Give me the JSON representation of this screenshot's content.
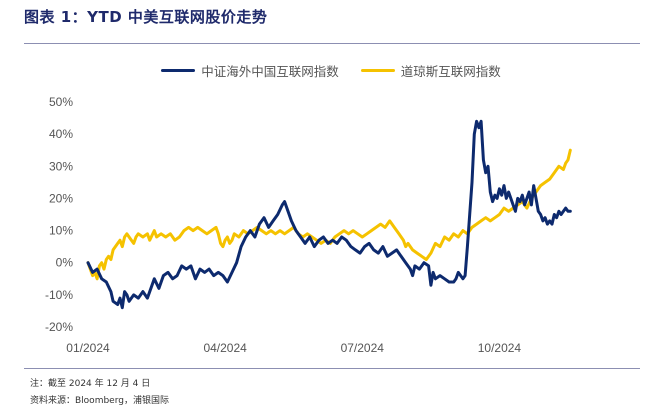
{
  "figure": {
    "title": "图表 1：YTD 中美互联网股价走势",
    "footnote": "注：截至 2024 年 12 月 4 日",
    "source": "资料来源：Bloomberg，浦银国际"
  },
  "chart_data": {
    "type": "line",
    "title": "",
    "xlabel": "",
    "ylabel": "",
    "ylim": [
      -20,
      50
    ],
    "xlim": [
      0,
      11.2
    ],
    "grid": false,
    "legend_position": "top-center",
    "yticks": [
      "50%",
      "40%",
      "30%",
      "20%",
      "10%",
      "0%",
      "-10%",
      "-20%"
    ],
    "ytick_values": [
      50,
      40,
      30,
      20,
      10,
      0,
      -10,
      -20
    ],
    "xticks": [
      "01/2024",
      "04/2024",
      "07/2024",
      "10/2024"
    ],
    "xtick_values": [
      0,
      3,
      6,
      9
    ],
    "series": [
      {
        "name": "中证海外中国互联网指数",
        "color": "#0d2a6e",
        "points": [
          [
            0.0,
            0
          ],
          [
            0.1,
            -3
          ],
          [
            0.2,
            -2
          ],
          [
            0.3,
            -5
          ],
          [
            0.4,
            -6
          ],
          [
            0.5,
            -9
          ],
          [
            0.55,
            -12
          ],
          [
            0.65,
            -13
          ],
          [
            0.7,
            -11
          ],
          [
            0.75,
            -14
          ],
          [
            0.8,
            -9
          ],
          [
            0.85,
            -10
          ],
          [
            0.9,
            -12
          ],
          [
            1.0,
            -10
          ],
          [
            1.1,
            -11
          ],
          [
            1.2,
            -9
          ],
          [
            1.3,
            -11
          ],
          [
            1.4,
            -7
          ],
          [
            1.45,
            -5
          ],
          [
            1.55,
            -8
          ],
          [
            1.65,
            -4
          ],
          [
            1.75,
            -3
          ],
          [
            1.85,
            -5
          ],
          [
            1.95,
            -4
          ],
          [
            2.05,
            -1
          ],
          [
            2.15,
            -2
          ],
          [
            2.25,
            -1
          ],
          [
            2.35,
            -5
          ],
          [
            2.45,
            -2
          ],
          [
            2.55,
            -3
          ],
          [
            2.65,
            -2
          ],
          [
            2.75,
            -4
          ],
          [
            2.85,
            -3
          ],
          [
            2.95,
            -4
          ],
          [
            3.05,
            -6
          ],
          [
            3.15,
            -3
          ],
          [
            3.25,
            0
          ],
          [
            3.35,
            5
          ],
          [
            3.45,
            8
          ],
          [
            3.55,
            10
          ],
          [
            3.65,
            8
          ],
          [
            3.75,
            12
          ],
          [
            3.85,
            14
          ],
          [
            3.95,
            11
          ],
          [
            4.05,
            13
          ],
          [
            4.15,
            15
          ],
          [
            4.25,
            18
          ],
          [
            4.3,
            19
          ],
          [
            4.35,
            17
          ],
          [
            4.45,
            13
          ],
          [
            4.55,
            10
          ],
          [
            4.65,
            8
          ],
          [
            4.75,
            6
          ],
          [
            4.85,
            8
          ],
          [
            4.95,
            5
          ],
          [
            5.05,
            7
          ],
          [
            5.15,
            8
          ],
          [
            5.25,
            6
          ],
          [
            5.35,
            7
          ],
          [
            5.45,
            6
          ],
          [
            5.55,
            8
          ],
          [
            5.65,
            7
          ],
          [
            5.75,
            5
          ],
          [
            5.85,
            4
          ],
          [
            5.95,
            3
          ],
          [
            6.05,
            5
          ],
          [
            6.15,
            6
          ],
          [
            6.25,
            4
          ],
          [
            6.35,
            3
          ],
          [
            6.45,
            5
          ],
          [
            6.55,
            2
          ],
          [
            6.65,
            3
          ],
          [
            6.75,
            4
          ],
          [
            6.85,
            2
          ],
          [
            6.95,
            0
          ],
          [
            7.05,
            -2
          ],
          [
            7.1,
            -4
          ],
          [
            7.15,
            -1
          ],
          [
            7.25,
            -2
          ],
          [
            7.35,
            0
          ],
          [
            7.45,
            -1
          ],
          [
            7.5,
            -7
          ],
          [
            7.55,
            -3
          ],
          [
            7.6,
            -5
          ],
          [
            7.7,
            -4
          ],
          [
            7.8,
            -5
          ],
          [
            7.9,
            -6
          ],
          [
            8.0,
            -6
          ],
          [
            8.05,
            -5
          ],
          [
            8.1,
            -3
          ],
          [
            8.2,
            -5
          ],
          [
            8.25,
            -4
          ],
          [
            8.3,
            5
          ],
          [
            8.35,
            15
          ],
          [
            8.4,
            25
          ],
          [
            8.45,
            40
          ],
          [
            8.5,
            44
          ],
          [
            8.55,
            42
          ],
          [
            8.6,
            44
          ],
          [
            8.65,
            32
          ],
          [
            8.7,
            28
          ],
          [
            8.75,
            30
          ],
          [
            8.8,
            22
          ],
          [
            8.85,
            19
          ],
          [
            8.9,
            21
          ],
          [
            8.95,
            20
          ],
          [
            9.0,
            23
          ],
          [
            9.05,
            21
          ],
          [
            9.1,
            24
          ],
          [
            9.15,
            20
          ],
          [
            9.2,
            22
          ],
          [
            9.3,
            18
          ],
          [
            9.35,
            16
          ],
          [
            9.4,
            20
          ],
          [
            9.45,
            19
          ],
          [
            9.5,
            21
          ],
          [
            9.55,
            18
          ],
          [
            9.6,
            20
          ],
          [
            9.65,
            22
          ],
          [
            9.7,
            18
          ],
          [
            9.75,
            24
          ],
          [
            9.8,
            20
          ],
          [
            9.85,
            16
          ],
          [
            9.9,
            15
          ],
          [
            9.95,
            13
          ],
          [
            10.0,
            14
          ],
          [
            10.05,
            12
          ],
          [
            10.1,
            13
          ],
          [
            10.15,
            12
          ],
          [
            10.2,
            15
          ],
          [
            10.25,
            14
          ],
          [
            10.3,
            16
          ],
          [
            10.35,
            15
          ],
          [
            10.4,
            16
          ],
          [
            10.45,
            17
          ],
          [
            10.5,
            16
          ],
          [
            10.55,
            16
          ]
        ]
      },
      {
        "name": "道琼斯互联网指数",
        "color": "#f5c200",
        "points": [
          [
            0.0,
            0
          ],
          [
            0.05,
            -2
          ],
          [
            0.1,
            -4
          ],
          [
            0.15,
            -3
          ],
          [
            0.2,
            -5
          ],
          [
            0.25,
            -1
          ],
          [
            0.3,
            0
          ],
          [
            0.35,
            -2
          ],
          [
            0.4,
            1
          ],
          [
            0.45,
            2
          ],
          [
            0.5,
            1
          ],
          [
            0.55,
            4
          ],
          [
            0.6,
            5
          ],
          [
            0.65,
            6
          ],
          [
            0.7,
            7
          ],
          [
            0.75,
            5
          ],
          [
            0.8,
            8
          ],
          [
            0.85,
            9
          ],
          [
            0.9,
            8
          ],
          [
            0.95,
            7
          ],
          [
            1.0,
            6
          ],
          [
            1.05,
            8
          ],
          [
            1.1,
            9
          ],
          [
            1.2,
            8
          ],
          [
            1.3,
            9
          ],
          [
            1.35,
            7
          ],
          [
            1.45,
            10
          ],
          [
            1.5,
            8
          ],
          [
            1.6,
            9
          ],
          [
            1.7,
            8
          ],
          [
            1.8,
            9
          ],
          [
            1.9,
            7
          ],
          [
            2.0,
            8
          ],
          [
            2.1,
            10
          ],
          [
            2.2,
            11
          ],
          [
            2.3,
            10
          ],
          [
            2.4,
            11
          ],
          [
            2.5,
            10
          ],
          [
            2.6,
            9
          ],
          [
            2.7,
            10
          ],
          [
            2.8,
            11
          ],
          [
            2.85,
            9
          ],
          [
            2.9,
            6
          ],
          [
            2.95,
            5
          ],
          [
            3.0,
            7
          ],
          [
            3.05,
            8
          ],
          [
            3.1,
            6
          ],
          [
            3.15,
            7
          ],
          [
            3.2,
            9
          ],
          [
            3.3,
            8
          ],
          [
            3.4,
            10
          ],
          [
            3.5,
            9
          ],
          [
            3.6,
            10
          ],
          [
            3.7,
            11
          ],
          [
            3.8,
            10
          ],
          [
            3.9,
            9
          ],
          [
            4.0,
            10
          ],
          [
            4.1,
            9
          ],
          [
            4.2,
            10
          ],
          [
            4.3,
            9
          ],
          [
            4.4,
            10
          ],
          [
            4.5,
            11
          ],
          [
            4.6,
            9
          ],
          [
            4.7,
            8
          ],
          [
            4.8,
            9
          ],
          [
            4.9,
            8
          ],
          [
            5.0,
            7
          ],
          [
            5.1,
            6
          ],
          [
            5.2,
            7
          ],
          [
            5.3,
            6
          ],
          [
            5.4,
            8
          ],
          [
            5.5,
            9
          ],
          [
            5.6,
            10
          ],
          [
            5.7,
            9
          ],
          [
            5.8,
            10
          ],
          [
            5.9,
            9
          ],
          [
            6.0,
            8
          ],
          [
            6.1,
            9
          ],
          [
            6.2,
            10
          ],
          [
            6.3,
            11
          ],
          [
            6.4,
            12
          ],
          [
            6.5,
            11
          ],
          [
            6.6,
            13
          ],
          [
            6.7,
            11
          ],
          [
            6.8,
            9
          ],
          [
            6.9,
            7
          ],
          [
            6.95,
            5
          ],
          [
            7.0,
            6
          ],
          [
            7.1,
            4
          ],
          [
            7.2,
            3
          ],
          [
            7.3,
            2
          ],
          [
            7.4,
            1
          ],
          [
            7.5,
            3
          ],
          [
            7.6,
            6
          ],
          [
            7.7,
            5
          ],
          [
            7.8,
            8
          ],
          [
            7.9,
            7
          ],
          [
            8.0,
            9
          ],
          [
            8.1,
            8
          ],
          [
            8.2,
            10
          ],
          [
            8.3,
            9
          ],
          [
            8.4,
            11
          ],
          [
            8.5,
            12
          ],
          [
            8.6,
            13
          ],
          [
            8.7,
            14
          ],
          [
            8.8,
            13
          ],
          [
            8.9,
            14
          ],
          [
            9.0,
            15
          ],
          [
            9.1,
            17
          ],
          [
            9.2,
            16
          ],
          [
            9.3,
            17
          ],
          [
            9.4,
            18
          ],
          [
            9.5,
            19
          ],
          [
            9.6,
            17
          ],
          [
            9.7,
            20
          ],
          [
            9.8,
            22
          ],
          [
            9.9,
            24
          ],
          [
            10.0,
            25
          ],
          [
            10.1,
            26
          ],
          [
            10.2,
            28
          ],
          [
            10.3,
            30
          ],
          [
            10.4,
            29
          ],
          [
            10.45,
            31
          ],
          [
            10.5,
            32
          ],
          [
            10.55,
            35
          ]
        ]
      }
    ]
  }
}
